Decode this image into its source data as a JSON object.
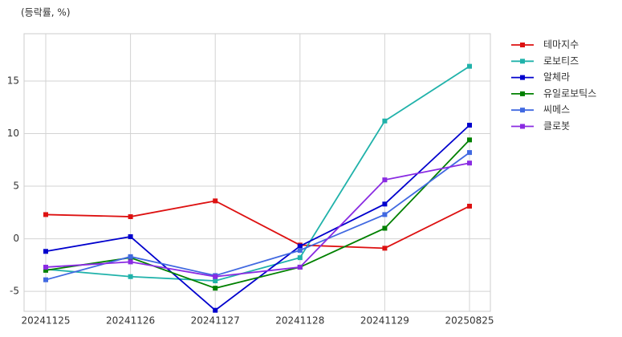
{
  "chart_data": {
    "type": "line",
    "y_label": "(등락률, %)",
    "categories": [
      "20241125",
      "20241126",
      "20241127",
      "20241128",
      "20241129",
      "20250825"
    ],
    "series": [
      {
        "name": "테마지수",
        "color": "#dd1111",
        "values": [
          2.3,
          2.1,
          3.6,
          -0.6,
          -0.9,
          3.1
        ]
      },
      {
        "name": "로보티즈",
        "color": "#20b2aa",
        "values": [
          -2.9,
          -3.6,
          -4.0,
          -1.8,
          11.2,
          16.4
        ]
      },
      {
        "name": "알체라",
        "color": "#0000cd",
        "values": [
          -1.2,
          0.2,
          -6.8,
          -0.7,
          3.3,
          10.8
        ]
      },
      {
        "name": "유일로보틱스",
        "color": "#008000",
        "values": [
          -3.0,
          -1.8,
          -4.7,
          -2.7,
          1.0,
          9.4
        ]
      },
      {
        "name": "씨메스",
        "color": "#4169e1",
        "values": [
          -3.9,
          -1.7,
          -3.5,
          -1.1,
          2.3,
          8.2
        ]
      },
      {
        "name": "클로봇",
        "color": "#8a2be2",
        "values": [
          -2.7,
          -2.2,
          -3.6,
          -2.7,
          5.6,
          7.2
        ]
      }
    ],
    "ylim": [
      -6.9,
      19.5
    ],
    "yticks": [
      -5,
      0,
      5,
      10,
      15
    ],
    "grid": true,
    "legend": "right"
  }
}
